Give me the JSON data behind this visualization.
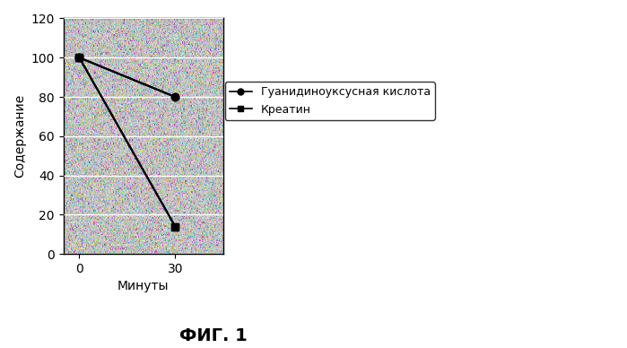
{
  "title": "ФИГ. 1",
  "xlabel": "Минуты",
  "ylabel": "Содержание",
  "xlim": [
    -5,
    45
  ],
  "ylim": [
    0,
    120
  ],
  "yticks": [
    0,
    20,
    40,
    60,
    80,
    100,
    120
  ],
  "xticks": [
    0,
    30
  ],
  "series": [
    {
      "label": "Гуанидиноуксусная кислота",
      "x": [
        0,
        30
      ],
      "y": [
        100,
        80
      ],
      "marker": "o",
      "color": "#000000",
      "markersize": 6,
      "linewidth": 1.5
    },
    {
      "label": "Креатин",
      "x": [
        0,
        30
      ],
      "y": [
        100,
        14
      ],
      "marker": "s",
      "color": "#000000",
      "markersize": 6,
      "linewidth": 1.5
    }
  ],
  "noise_mean": 200,
  "noise_std": 40,
  "background_color": "#c8c8c8",
  "grid_color": "#ffffff",
  "legend_fontsize": 9,
  "axis_fontsize": 10,
  "title_fontsize": 14,
  "xlabel_fontsize": 10,
  "ylabel_fontsize": 10,
  "fig_width": 6.99,
  "fig_height": 3.88,
  "dpi": 100
}
